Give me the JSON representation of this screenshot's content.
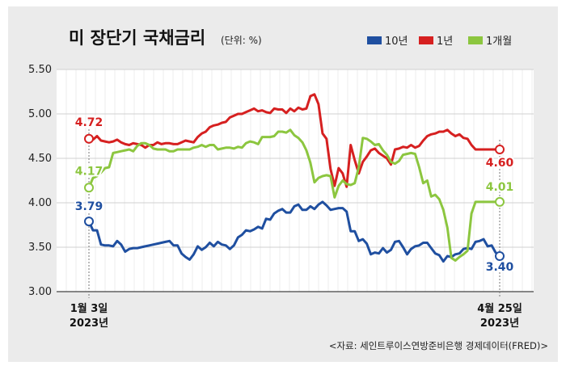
{
  "header": {
    "title": "미 장단기 국채금리",
    "unit": "(단위: %)"
  },
  "source": "<자료: 세인트루이스연방준비은행 경제데이터(FRED)>",
  "colors": {
    "10y": "#1f4fa0",
    "1y": "#d62020",
    "1m": "#8cc63f"
  },
  "chart_data": {
    "type": "line",
    "title": "미 장단기 국채금리",
    "ylabel": "",
    "xlabel": "",
    "ylim": [
      3.0,
      5.5
    ],
    "yticks": [
      "5.50",
      "5.00",
      "4.50",
      "4.00",
      "3.50",
      "3.00"
    ],
    "grid": true,
    "legend_position": "top-right",
    "x_start_label": [
      "1월 3일",
      "2023년"
    ],
    "x_end_label": [
      "4월 25일",
      "2023년"
    ],
    "series": [
      {
        "name": "10년",
        "color": "#1f4fa0",
        "start_label": "3.79",
        "end_label": "3.40",
        "values": [
          3.79,
          3.69,
          3.69,
          3.53,
          3.52,
          3.52,
          3.51,
          3.57,
          3.53,
          3.45,
          3.48,
          3.49,
          3.49,
          3.5,
          3.51,
          3.52,
          3.53,
          3.54,
          3.55,
          3.56,
          3.57,
          3.52,
          3.52,
          3.43,
          3.39,
          3.36,
          3.42,
          3.51,
          3.47,
          3.5,
          3.55,
          3.51,
          3.56,
          3.53,
          3.52,
          3.48,
          3.52,
          3.61,
          3.64,
          3.69,
          3.68,
          3.7,
          3.73,
          3.71,
          3.82,
          3.81,
          3.88,
          3.91,
          3.93,
          3.89,
          3.89,
          3.96,
          3.98,
          3.92,
          3.92,
          3.96,
          3.93,
          3.98,
          4.01,
          3.97,
          3.92,
          3.93,
          3.94,
          3.94,
          3.9,
          3.68,
          3.68,
          3.57,
          3.59,
          3.54,
          3.42,
          3.44,
          3.43,
          3.49,
          3.44,
          3.47,
          3.56,
          3.57,
          3.5,
          3.42,
          3.48,
          3.51,
          3.52,
          3.55,
          3.55,
          3.49,
          3.43,
          3.41,
          3.34,
          3.4,
          3.39,
          3.42,
          3.43,
          3.48,
          3.49,
          3.48,
          3.56,
          3.57,
          3.59,
          3.51,
          3.52,
          3.44,
          3.4
        ],
        "dates": []
      },
      {
        "name": "1년",
        "color": "#d62020",
        "start_label": "4.72",
        "end_label": "4.60",
        "values": [
          4.72,
          4.71,
          4.75,
          4.7,
          4.69,
          4.68,
          4.69,
          4.71,
          4.68,
          4.66,
          4.65,
          4.67,
          4.66,
          4.65,
          4.62,
          4.65,
          4.65,
          4.68,
          4.66,
          4.67,
          4.67,
          4.66,
          4.66,
          4.68,
          4.7,
          4.69,
          4.68,
          4.74,
          4.78,
          4.8,
          4.85,
          4.87,
          4.88,
          4.9,
          4.91,
          4.96,
          4.98,
          5.0,
          5.0,
          5.02,
          5.04,
          5.06,
          5.03,
          5.04,
          5.02,
          5.01,
          5.06,
          5.05,
          5.05,
          5.01,
          5.06,
          5.03,
          5.07,
          5.05,
          5.06,
          5.2,
          5.22,
          5.11,
          4.78,
          4.72,
          4.38,
          4.19,
          4.39,
          4.33,
          4.18,
          4.65,
          4.48,
          4.33,
          4.46,
          4.52,
          4.59,
          4.61,
          4.56,
          4.53,
          4.5,
          4.43,
          4.6,
          4.61,
          4.63,
          4.62,
          4.65,
          4.62,
          4.64,
          4.7,
          4.75,
          4.77,
          4.78,
          4.8,
          4.8,
          4.82,
          4.78,
          4.75,
          4.77,
          4.73,
          4.72,
          4.65,
          4.6,
          4.6,
          4.6,
          4.6,
          4.6,
          4.6,
          4.6
        ],
        "dates": []
      },
      {
        "name": "1개월",
        "color": "#8cc63f",
        "start_label": "4.17",
        "end_label": "4.01",
        "values": [
          4.17,
          4.28,
          4.3,
          4.34,
          4.39,
          4.4,
          4.56,
          4.57,
          4.58,
          4.59,
          4.6,
          4.58,
          4.64,
          4.67,
          4.67,
          4.65,
          4.61,
          4.6,
          4.6,
          4.6,
          4.58,
          4.58,
          4.6,
          4.6,
          4.6,
          4.6,
          4.62,
          4.63,
          4.65,
          4.63,
          4.65,
          4.65,
          4.6,
          4.61,
          4.62,
          4.62,
          4.61,
          4.63,
          4.62,
          4.67,
          4.69,
          4.68,
          4.66,
          4.74,
          4.74,
          4.74,
          4.75,
          4.8,
          4.8,
          4.79,
          4.82,
          4.76,
          4.73,
          4.68,
          4.59,
          4.45,
          4.23,
          4.28,
          4.3,
          4.31,
          4.3,
          4.06,
          4.19,
          4.25,
          4.21,
          4.2,
          4.22,
          4.4,
          4.73,
          4.72,
          4.69,
          4.65,
          4.66,
          4.59,
          4.54,
          4.46,
          4.44,
          4.47,
          4.54,
          4.55,
          4.56,
          4.55,
          4.4,
          4.22,
          4.25,
          4.07,
          4.09,
          4.04,
          3.92,
          3.72,
          3.38,
          3.35,
          3.39,
          3.42,
          3.46,
          3.88,
          4.01,
          4.01,
          4.01,
          4.01,
          4.01,
          4.01,
          4.01
        ],
        "dates": []
      }
    ]
  }
}
